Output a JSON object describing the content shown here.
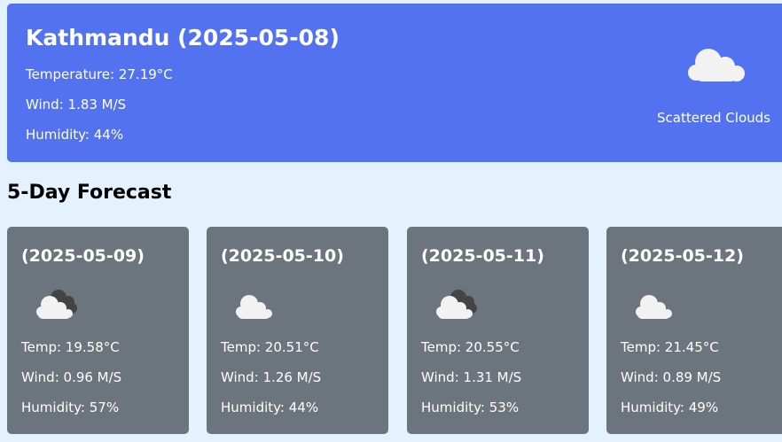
{
  "current": {
    "title": "Kathmandu (2025-05-08)",
    "temperature": "Temperature: 27.19°C",
    "wind": "Wind: 1.83 M/S",
    "humidity": "Humidity: 44%",
    "icon": "cloud-icon",
    "description": "Scattered Clouds"
  },
  "forecast": {
    "title": "5-Day Forecast",
    "days": [
      {
        "date": "(2025-05-09)",
        "icon": "broken-clouds-icon",
        "temp": "Temp: 19.58°C",
        "wind": "Wind: 0.96 M/S",
        "humidity": "Humidity: 57%"
      },
      {
        "date": "(2025-05-10)",
        "icon": "cloud-icon",
        "temp": "Temp: 20.51°C",
        "wind": "Wind: 1.26 M/S",
        "humidity": "Humidity: 44%"
      },
      {
        "date": "(2025-05-11)",
        "icon": "broken-clouds-icon",
        "temp": "Temp: 20.55°C",
        "wind": "Wind: 1.31 M/S",
        "humidity": "Humidity: 53%"
      },
      {
        "date": "(2025-05-12)",
        "icon": "cloud-icon",
        "temp": "Temp: 21.45°C",
        "wind": "Wind: 0.89 M/S",
        "humidity": "Humidity: 49%"
      }
    ]
  }
}
